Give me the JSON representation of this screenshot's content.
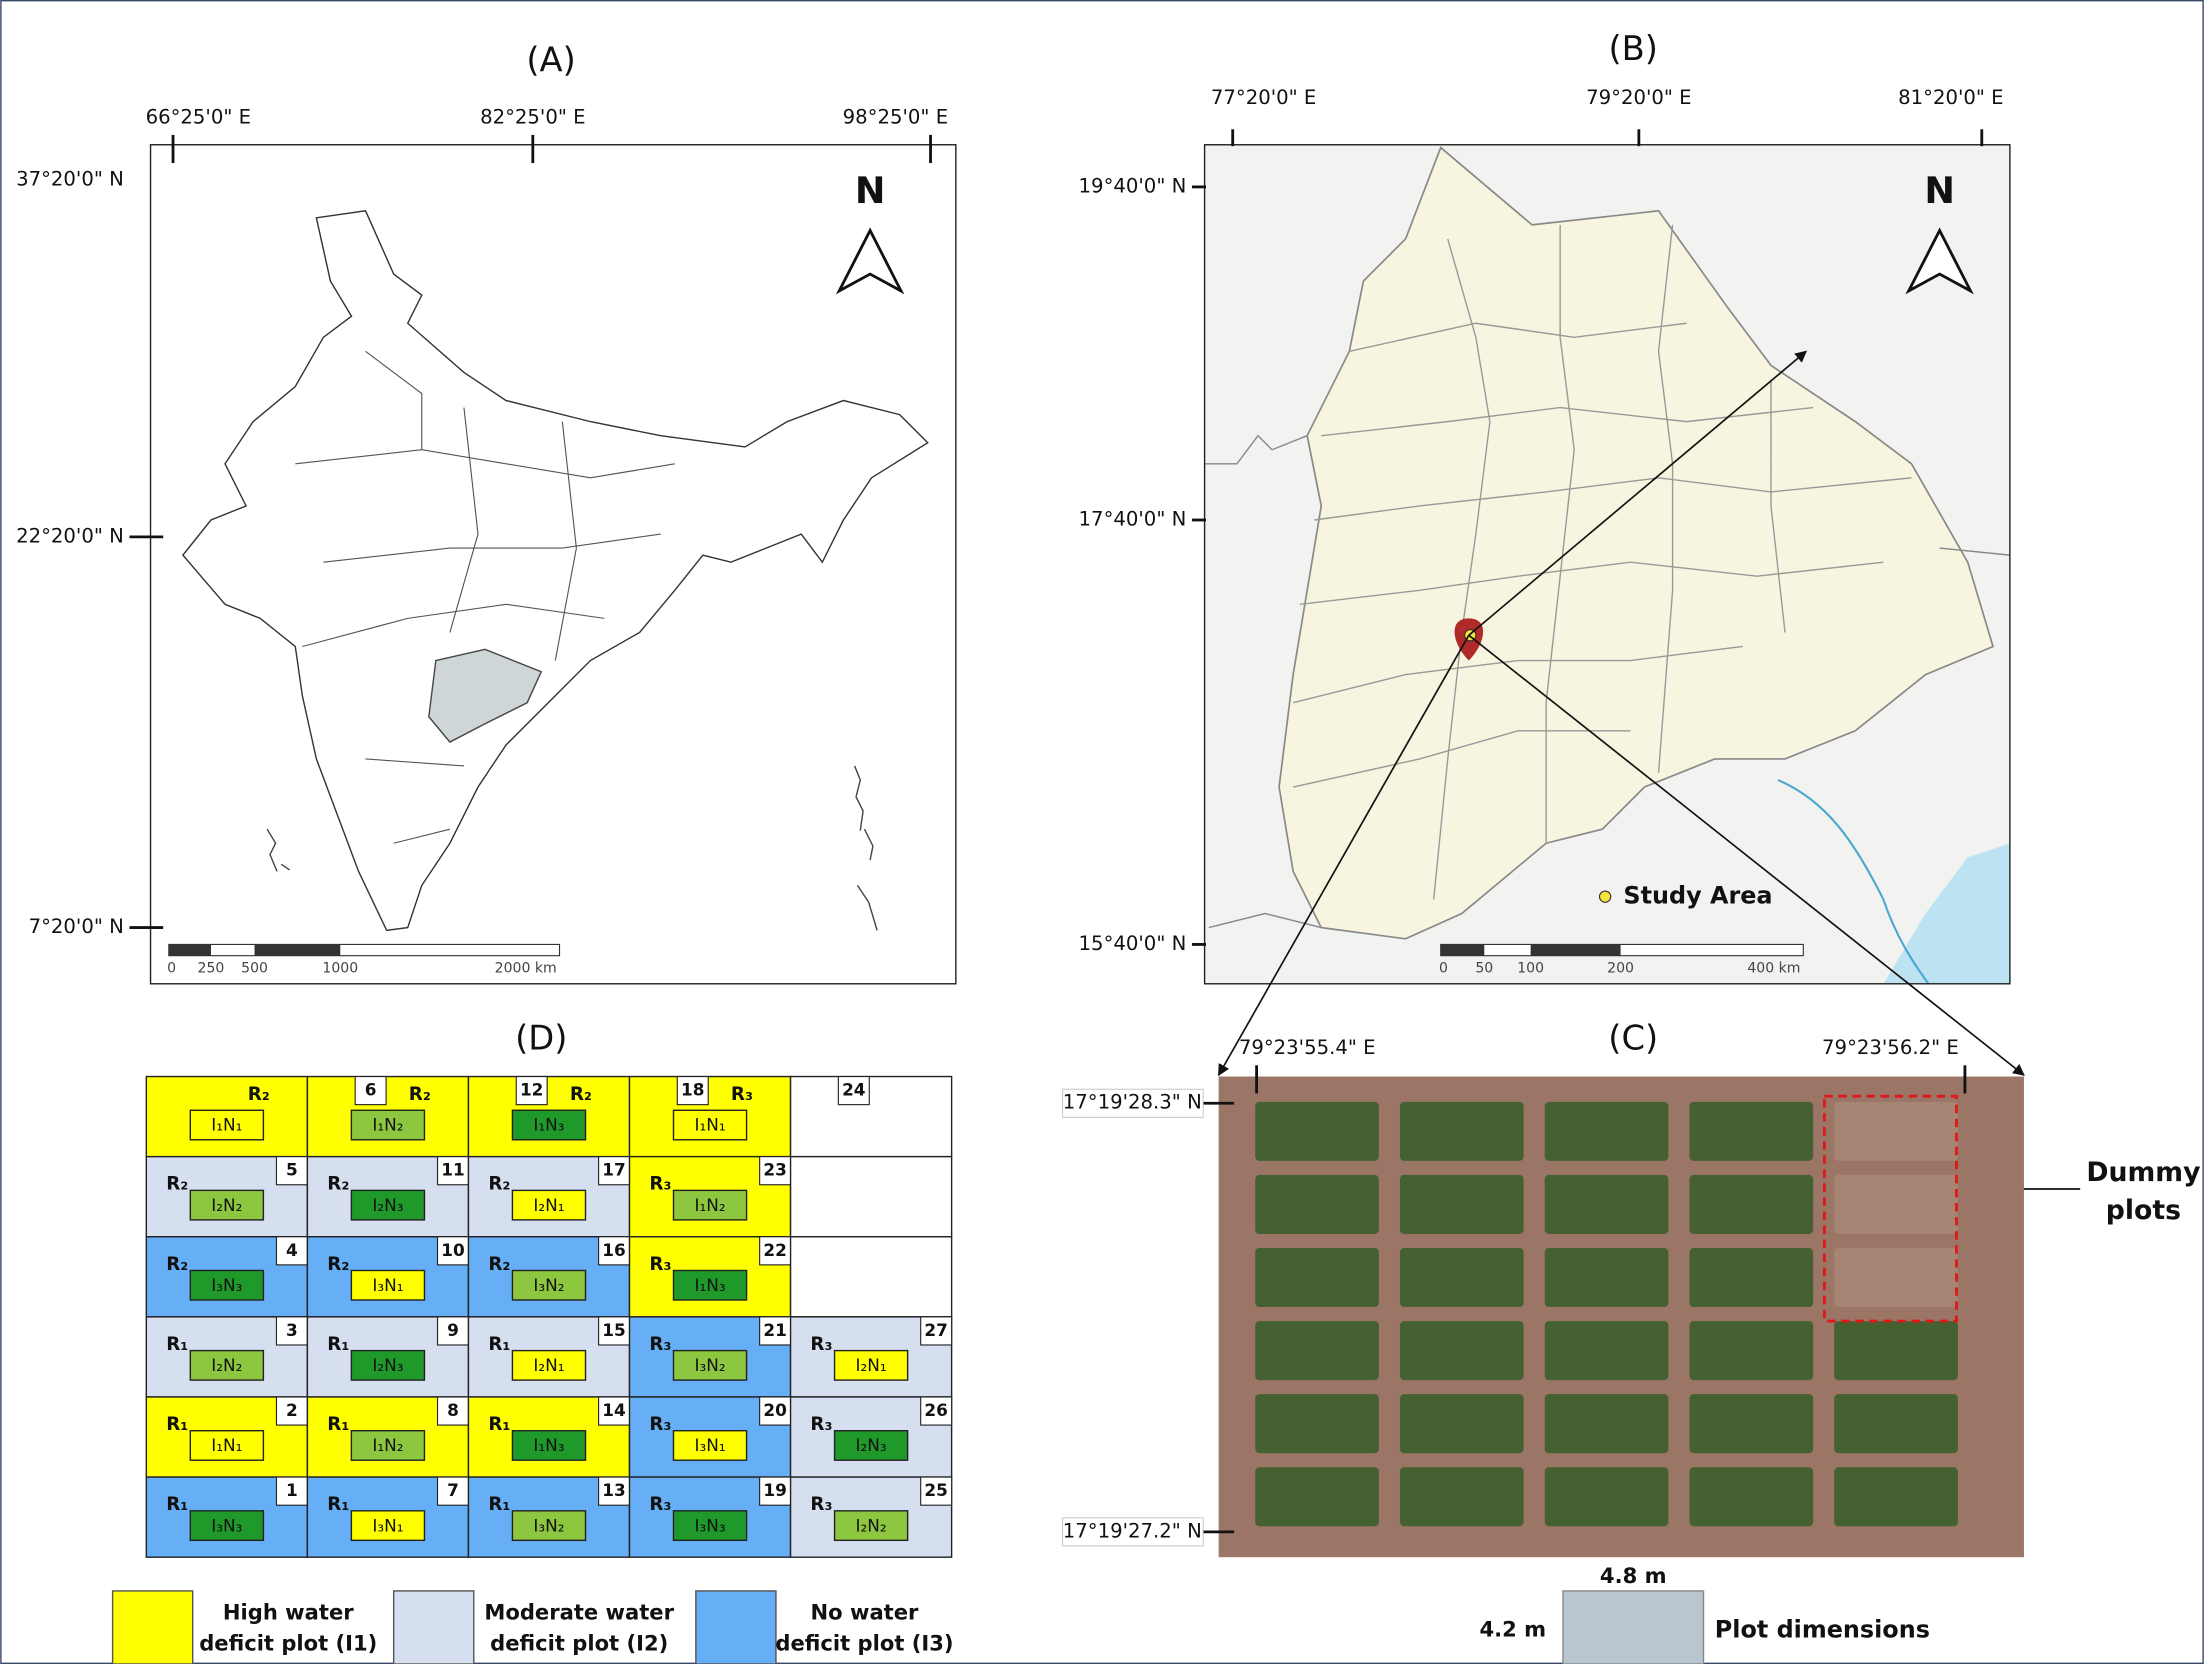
{
  "map_a": {
    "label": "(A)",
    "lon_labels": [
      "66°25'0\" E",
      "82°25'0\" E",
      "98°25'0\" E"
    ],
    "lat_labels": [
      "37°20'0\" N",
      "22°20'0\" N",
      "7°20'0\" N"
    ],
    "north": "N",
    "scale_labels": [
      "0",
      "250",
      "500",
      "1000",
      "2000 km"
    ]
  },
  "map_b": {
    "label": "(B)",
    "lon_labels": [
      "77°20'0\" E",
      "79°20'0\" E",
      "81°20'0\" E"
    ],
    "lat_labels": [
      "19°40'0\" N",
      "17°40'0\" N",
      "15°40'0\" N"
    ],
    "north": "N",
    "legend": "Study Area",
    "scale_labels": [
      "0",
      "50",
      "100",
      "200",
      "400 km"
    ]
  },
  "photo_c": {
    "label": "(C)",
    "lon_labels": [
      "79°23'55.4\" E",
      "79°23'56.2\" E"
    ],
    "lat_labels": [
      "17°19'28.3\" N",
      "17°19'27.2\" N"
    ],
    "annotation": [
      "Dummy",
      "plots"
    ],
    "plot_width": "4.8 m",
    "plot_height": "4.2 m",
    "plot_caption": "Plot dimensions"
  },
  "layout_d": {
    "label": "(D)",
    "rows": [
      [
        {
          "rep": "R₂",
          "treatment": "I₁N₁",
          "fill": "#ffff00",
          "box": "#ffff00"
        },
        {
          "number": 6,
          "rep": "R₂",
          "treatment": "I₁N₂",
          "fill": "#ffff00",
          "box": "#8dc63f"
        },
        {
          "number": 12,
          "rep": "R₂",
          "treatment": "I₁N₃",
          "fill": "#ffff00",
          "box": "#1f9a2a"
        },
        {
          "number": 18,
          "rep": "R₃",
          "treatment": "I₁N₁",
          "fill": "#ffff00",
          "box": "#ffff00"
        },
        {
          "number": 24,
          "fill": "#ffffff"
        }
      ],
      [
        {
          "number": 5,
          "rep": "R₂",
          "treatment": "I₂N₂",
          "fill": "#d5dff0",
          "box": "#8dc63f"
        },
        {
          "number": 11,
          "rep": "R₂",
          "treatment": "I₂N₃",
          "fill": "#d5dff0",
          "box": "#1f9a2a"
        },
        {
          "number": 17,
          "rep": "R₂",
          "treatment": "I₂N₁",
          "fill": "#d5dff0",
          "box": "#ffff00"
        },
        {
          "number": 23,
          "rep": "R₃",
          "treatment": "I₁N₂",
          "fill": "#ffff00",
          "box": "#8dc63f"
        },
        {
          "fill": "#ffffff"
        }
      ],
      [
        {
          "number": 4,
          "rep": "R₂",
          "treatment": "I₃N₃",
          "fill": "#66aef5",
          "box": "#1f9a2a"
        },
        {
          "number": 10,
          "rep": "R₂",
          "treatment": "I₃N₁",
          "fill": "#66aef5",
          "box": "#ffff00"
        },
        {
          "number": 16,
          "rep": "R₂",
          "treatment": "I₃N₂",
          "fill": "#66aef5",
          "box": "#8dc63f"
        },
        {
          "number": 22,
          "rep": "R₃",
          "treatment": "I₁N₃",
          "fill": "#ffff00",
          "box": "#1f9a2a"
        },
        {
          "fill": "#ffffff"
        }
      ],
      [
        {
          "number": 3,
          "rep": "R₁",
          "treatment": "I₂N₂",
          "fill": "#d5dff0",
          "box": "#8dc63f"
        },
        {
          "number": 9,
          "rep": "R₁",
          "treatment": "I₂N₃",
          "fill": "#d5dff0",
          "box": "#1f9a2a"
        },
        {
          "number": 15,
          "rep": "R₁",
          "treatment": "I₂N₁",
          "fill": "#d5dff0",
          "box": "#ffff00"
        },
        {
          "number": 21,
          "rep": "R₃",
          "treatment": "I₃N₂",
          "fill": "#66aef5",
          "box": "#8dc63f"
        },
        {
          "number": 27,
          "rep": "R₃",
          "treatment": "I₂N₁",
          "fill": "#d5dff0",
          "box": "#ffff00"
        }
      ],
      [
        {
          "number": 2,
          "rep": "R₁",
          "treatment": "I₁N₁",
          "fill": "#ffff00",
          "box": "#ffff00"
        },
        {
          "number": 8,
          "rep": "R₁",
          "treatment": "I₁N₂",
          "fill": "#ffff00",
          "box": "#8dc63f"
        },
        {
          "number": 14,
          "rep": "R₁",
          "treatment": "I₁N₃",
          "fill": "#ffff00",
          "box": "#1f9a2a"
        },
        {
          "number": 20,
          "rep": "R₃",
          "treatment": "I₃N₁",
          "fill": "#66aef5",
          "box": "#ffff00"
        },
        {
          "number": 26,
          "rep": "R₃",
          "treatment": "I₂N₃",
          "fill": "#d5dff0",
          "box": "#1f9a2a"
        }
      ],
      [
        {
          "number": 1,
          "rep": "R₁",
          "treatment": "I₃N₃",
          "fill": "#66aef5",
          "box": "#1f9a2a"
        },
        {
          "number": 7,
          "rep": "R₁",
          "treatment": "I₃N₁",
          "fill": "#66aef5",
          "box": "#ffff00"
        },
        {
          "number": 13,
          "rep": "R₁",
          "treatment": "I₃N₂",
          "fill": "#66aef5",
          "box": "#8dc63f"
        },
        {
          "number": 19,
          "rep": "R₃",
          "treatment": "I₃N₃",
          "fill": "#66aef5",
          "box": "#1f9a2a"
        },
        {
          "number": 25,
          "rep": "R₃",
          "treatment": "I₂N₂",
          "fill": "#d5dff0",
          "box": "#8dc63f"
        }
      ]
    ],
    "legend": [
      {
        "lines": [
          "High water",
          "deficit plot (I1)"
        ],
        "color": "#ffff00"
      },
      {
        "lines": [
          "Moderate water",
          "deficit plot (I2)"
        ],
        "color": "#d5dff0"
      },
      {
        "lines": [
          "No water",
          "deficit plot (I3)"
        ],
        "color": "#66aef5"
      }
    ]
  }
}
